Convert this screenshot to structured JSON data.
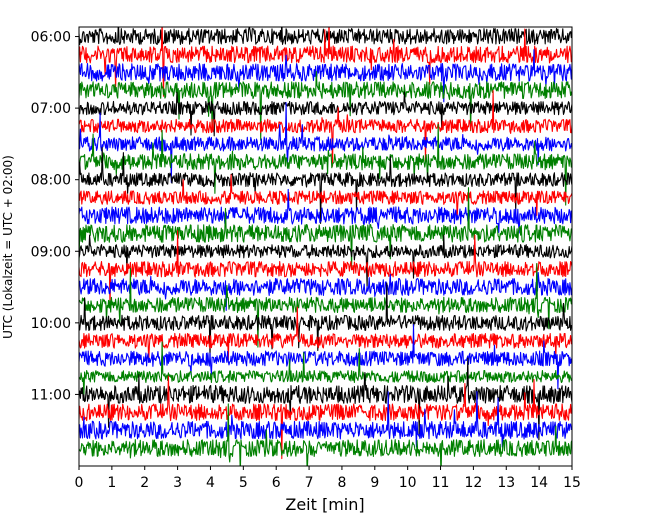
{
  "chart_data": {
    "type": "line",
    "title": "",
    "xlabel": "Zeit  [min]",
    "ylabel": "UTC (Lokalzeit = UTC + 02:00)",
    "xlim": [
      0,
      15
    ],
    "x_ticks": [
      0,
      1,
      2,
      3,
      4,
      5,
      6,
      7,
      8,
      9,
      10,
      11,
      12,
      13,
      14,
      15
    ],
    "x_tick_labels": [
      "0",
      "1",
      "2",
      "3",
      "4",
      "5",
      "6",
      "7",
      "8",
      "9",
      "10",
      "11",
      "12",
      "13",
      "14",
      "15"
    ],
    "y_range": [
      "05:52",
      "12:00"
    ],
    "y_ticks": [
      "06:00",
      "07:00",
      "08:00",
      "09:00",
      "10:00",
      "11:00"
    ],
    "trace_interval_minutes": 15,
    "trace_start": "06:00",
    "trace_count": 24,
    "colors": [
      "#000000",
      "#ff0000",
      "#0000ff",
      "#008000"
    ],
    "grid": false,
    "legend": "none"
  }
}
